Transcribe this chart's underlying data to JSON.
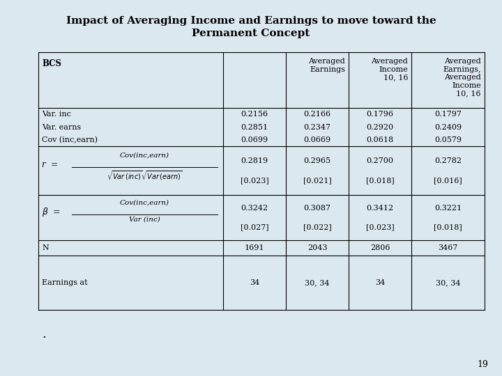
{
  "title_line1": "Impact of Averaging Income and Earnings to move toward the",
  "title_line2": "Permanent Concept",
  "background_color": "#dce8f0",
  "page_number": "19",
  "col_headers": [
    "BCS",
    "",
    "Averaged\nEarnings",
    "Averaged\nIncome\n10, 16",
    "Averaged\nEarnings,\nAveraged\nIncome\n10, 16"
  ],
  "row1_labels": [
    "Var. inc",
    "Var. earns",
    "Cov (inc,earn)"
  ],
  "row1_data": [
    [
      "0.2156",
      "0.2851",
      "0.0699"
    ],
    [
      "0.2166",
      "0.2347",
      "0.0669"
    ],
    [
      "0.1796",
      "0.2920",
      "0.0618"
    ],
    [
      "0.1797",
      "0.2409",
      "0.0579"
    ]
  ],
  "row2_data": [
    [
      "0.2819",
      "[0.023]"
    ],
    [
      "0.2965",
      "[0.021]"
    ],
    [
      "0.2700",
      "[0.018]"
    ],
    [
      "0.2782",
      "[0.016]"
    ]
  ],
  "row3_data": [
    [
      "0.3242",
      "[0.027]"
    ],
    [
      "0.3087",
      "[0.022]"
    ],
    [
      "0.3412",
      "[0.023]"
    ],
    [
      "0.3221",
      "[0.018]"
    ]
  ],
  "row4_data": [
    "1691",
    "2043",
    "2806",
    "3467"
  ],
  "row5_data": [
    "34",
    "30, 34",
    "34",
    "30, 34"
  ]
}
